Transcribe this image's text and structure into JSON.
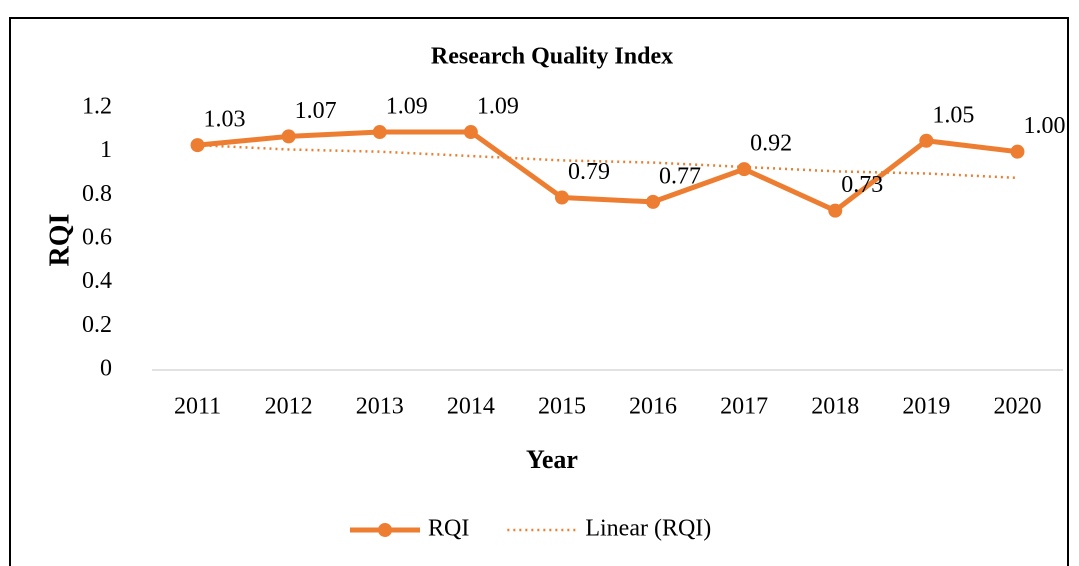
{
  "chart_data": {
    "type": "line",
    "title": "Research Quality Index",
    "x_label": "Year",
    "y_label": "RQI",
    "categories": [
      "2011",
      "2012",
      "2013",
      "2014",
      "2015",
      "2016",
      "2017",
      "2018",
      "2019",
      "2020"
    ],
    "series": [
      {
        "name": "RQI",
        "color": "#ED7D31",
        "values": [
          1.03,
          1.07,
          1.09,
          1.09,
          0.79,
          0.77,
          0.92,
          0.73,
          1.05,
          1.0
        ],
        "value_labels": [
          "1.03",
          "1.07",
          "1.09",
          "1.09",
          "0.79",
          "0.77",
          "0.92",
          "0.73",
          "1.05",
          "1.00"
        ]
      },
      {
        "name": "Linear (RQI)",
        "color": "#ED7D31",
        "dashed": true,
        "values": [
          1.03,
          1.01,
          1.0,
          0.98,
          0.96,
          0.95,
          0.93,
          0.91,
          0.9,
          0.88
        ]
      }
    ],
    "ylim": [
      0,
      1.2
    ],
    "yticks": [
      0,
      0.2,
      0.4,
      0.6,
      0.8,
      1,
      1.2
    ],
    "grid": false,
    "legend": "bottom"
  }
}
